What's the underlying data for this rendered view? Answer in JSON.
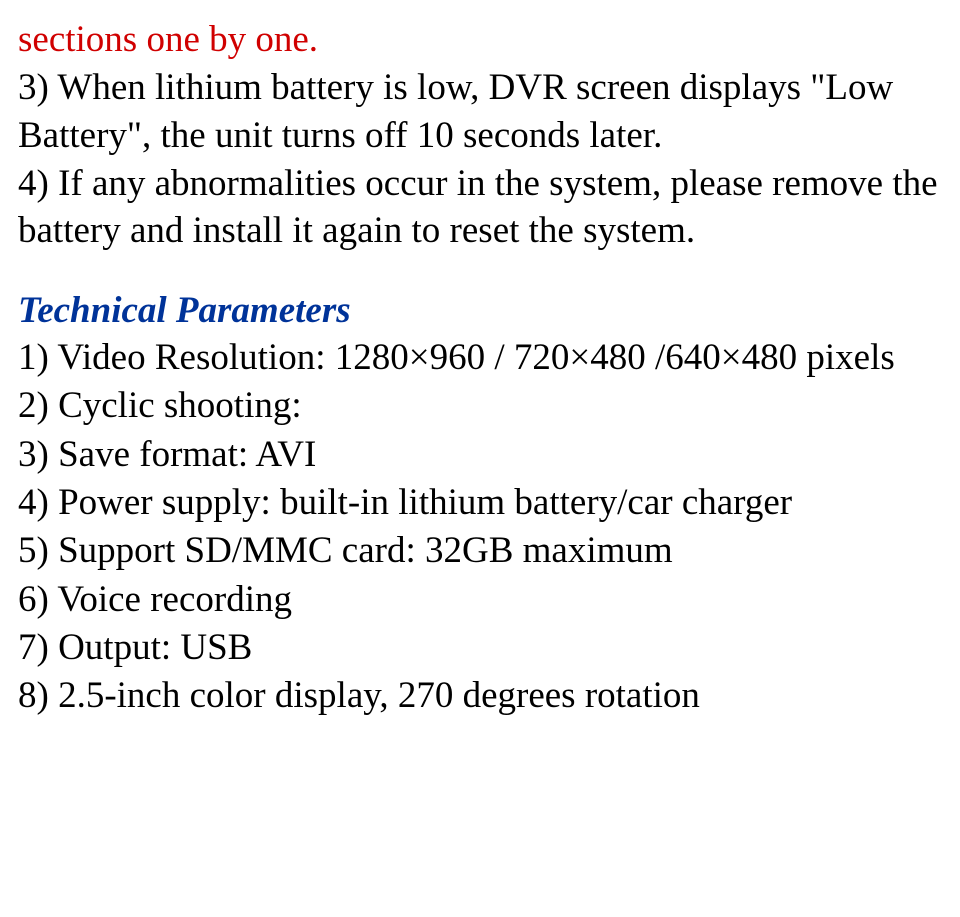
{
  "colors": {
    "text_primary": "#000000",
    "text_warning": "#d00000",
    "text_heading": "#003399",
    "background": "#ffffff"
  },
  "typography": {
    "body_family": "Times New Roman",
    "body_size_pt": 28,
    "heading_family": "Times New Roman",
    "heading_size_pt": 28,
    "heading_bold": true,
    "heading_italic": true,
    "line_height": 1.28
  },
  "doc": {
    "top_fragment": "sections one by one.",
    "p3": "3) When lithium battery is low, DVR screen displays \"Low Battery\", the unit turns off 10 seconds later.",
    "p4": "4) If any abnormalities occur in the system, please remove the battery and install it again to reset the system.",
    "tech_title": "Technical Parameters",
    "tp1": "1) Video Resolution: 1280×960 / 720×480 /640×480 pixels",
    "tp2": "2) Cyclic shooting:",
    "tp3": "3) Save format: AVI",
    "tp4": "4) Power supply: built-in lithium battery/car charger",
    "tp5": "5) Support SD/MMC card: 32GB maximum",
    "tp6": "6) Voice recording",
    "tp7": "7) Output: USB",
    "tp8": "8) 2.5-inch color display, 270 degrees rotation"
  }
}
